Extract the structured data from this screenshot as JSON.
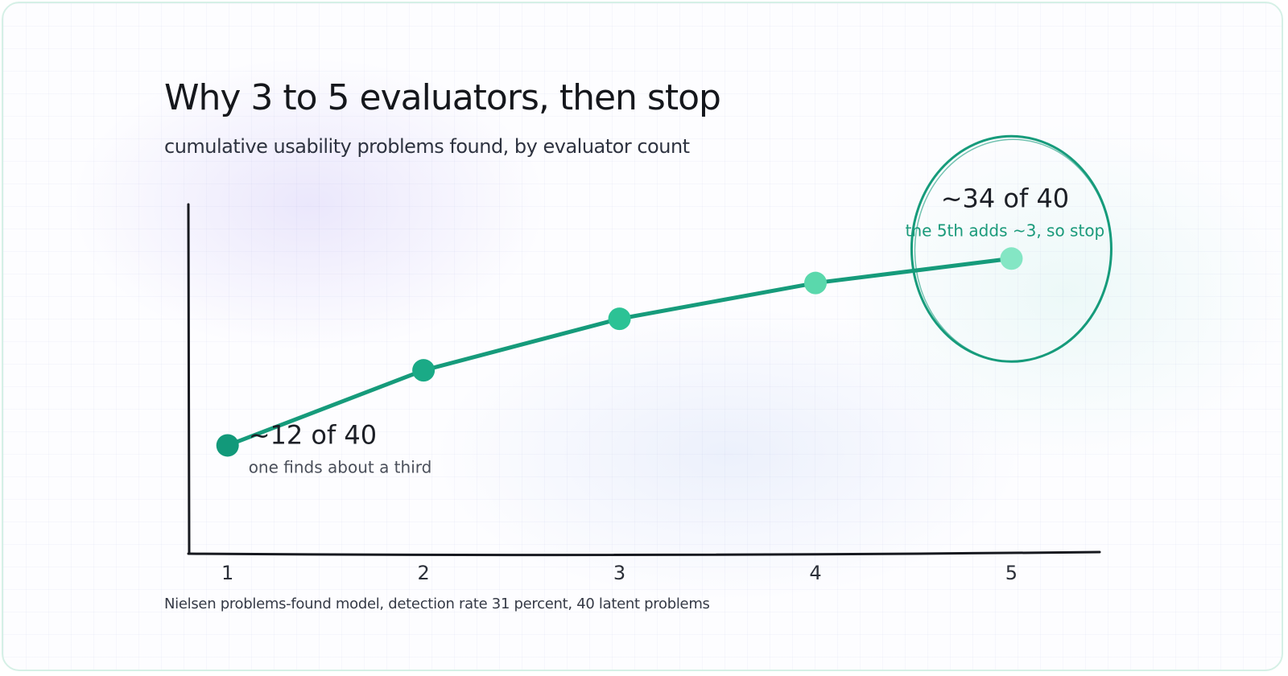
{
  "header": {
    "title": "Why 3 to 5 evaluators, then stop",
    "subtitle": "cumulative usability problems found, by evaluator count"
  },
  "footer": {
    "source": "Nielsen problems-found model, detection rate 31 percent, 40 latent problems"
  },
  "colors": {
    "line": "#169b7b",
    "points": [
      "#12997a",
      "#1aaa86",
      "#2cc295",
      "#5ad8ac",
      "#84e6c4"
    ],
    "axis": "#17191f",
    "highlight": "#169b7b"
  },
  "chart_data": {
    "type": "line",
    "title": "Why 3 to 5 evaluators, then stop",
    "subtitle": "cumulative usability problems found, by evaluator count",
    "x": [
      1,
      2,
      3,
      4,
      5
    ],
    "x_tick_labels": [
      "1",
      "2",
      "3",
      "4",
      "5"
    ],
    "series": [
      {
        "values": [
          12.4,
          21.0,
          26.9,
          31.0,
          33.8
        ]
      }
    ],
    "xlim": [
      0.8,
      5.45
    ],
    "ylim": [
      0,
      40
    ],
    "xlabel": "",
    "ylabel": "",
    "grid": false,
    "annotations": [
      {
        "x": 1,
        "label": "~12 of 40",
        "note": "one finds about a third"
      },
      {
        "x": 5,
        "label": "~34 of 40",
        "note": "the 5th adds ~3, so stop",
        "highlight": "circle"
      }
    ],
    "source": "Nielsen problems-found model, detection rate 31 percent, 40 latent problems"
  }
}
